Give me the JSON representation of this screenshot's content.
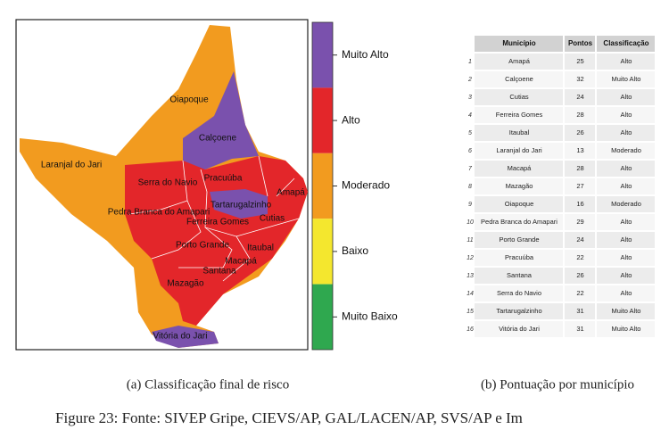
{
  "map": {
    "labels": [
      "Oiapoque",
      "Calçoene",
      "Laranjal do Jari",
      "Serra do Navio",
      "Pracuúba",
      "Amapá",
      "Tartarugalzinho",
      "Pedra Branca do Amapari",
      "Ferreira Gomes",
      "Cutias",
      "Porto Grande",
      "Itaubal",
      "Macapá",
      "Santana",
      "Mazagão",
      "Vitória do Jari"
    ],
    "legend": [
      {
        "name": "Muito Alto",
        "color": "#7a51ad"
      },
      {
        "name": "Alto",
        "color": "#e3262a"
      },
      {
        "name": "Moderado",
        "color": "#f29b1f"
      },
      {
        "name": "Baixo",
        "color": "#f4e72e"
      },
      {
        "name": "Muito Baixo",
        "color": "#2fa84f"
      }
    ]
  },
  "table": {
    "header": [
      "Município",
      "Pontos",
      "Classificação"
    ],
    "rows": [
      [
        "1",
        "Amapá",
        "25",
        "Alto"
      ],
      [
        "2",
        "Calçoene",
        "32",
        "Muito Alto"
      ],
      [
        "3",
        "Cutias",
        "24",
        "Alto"
      ],
      [
        "4",
        "Ferreira Gomes",
        "28",
        "Alto"
      ],
      [
        "5",
        "Itaubal",
        "26",
        "Alto"
      ],
      [
        "6",
        "Laranjal do Jari",
        "13",
        "Moderado"
      ],
      [
        "7",
        "Macapá",
        "28",
        "Alto"
      ],
      [
        "8",
        "Mazagão",
        "27",
        "Alto"
      ],
      [
        "9",
        "Oiapoque",
        "16",
        "Moderado"
      ],
      [
        "10",
        "Pedra Branca do Amapari",
        "29",
        "Alto"
      ],
      [
        "11",
        "Porto Grande",
        "24",
        "Alto"
      ],
      [
        "12",
        "Pracuúba",
        "22",
        "Alto"
      ],
      [
        "13",
        "Santana",
        "26",
        "Alto"
      ],
      [
        "14",
        "Serra do Navio",
        "22",
        "Alto"
      ],
      [
        "15",
        "Tartarugalzinho",
        "31",
        "Muito Alto"
      ],
      [
        "16",
        "Vitória do Jari",
        "31",
        "Muito Alto"
      ]
    ]
  },
  "captions": {
    "a": "(a) Classificação final de risco",
    "b": "(b) Pontuação por município",
    "figure": "Figure 23: Fonte: SIVEP Gripe, CIEVS/AP, GAL/LACEN/AP, SVS/AP e Im"
  }
}
